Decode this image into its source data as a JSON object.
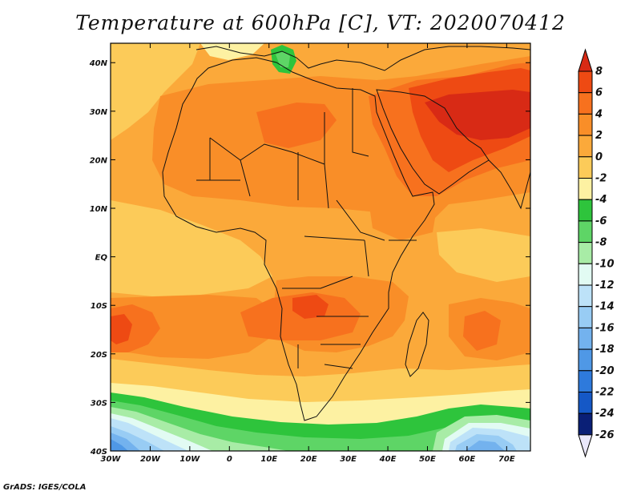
{
  "title": "Temperature at 600hPa [C], VT: 2020070412",
  "footer": "GrADS: IGES/COLA",
  "map": {
    "lon_range": [
      -30,
      76
    ],
    "lat_range": [
      -40,
      44
    ],
    "lat_ticks": [
      {
        "lat": 40,
        "label": "40N"
      },
      {
        "lat": 30,
        "label": "30N"
      },
      {
        "lat": 20,
        "label": "20N"
      },
      {
        "lat": 10,
        "label": "10N"
      },
      {
        "lat": 0,
        "label": "EQ"
      },
      {
        "lat": -10,
        "label": "10S"
      },
      {
        "lat": -20,
        "label": "20S"
      },
      {
        "lat": -30,
        "label": "30S"
      },
      {
        "lat": -40,
        "label": "40S"
      }
    ],
    "lon_ticks": [
      {
        "lon": -30,
        "label": "30W"
      },
      {
        "lon": -20,
        "label": "20W"
      },
      {
        "lon": -10,
        "label": "10W"
      },
      {
        "lon": 0,
        "label": "0"
      },
      {
        "lon": 10,
        "label": "10E"
      },
      {
        "lon": 20,
        "label": "20E"
      },
      {
        "lon": 30,
        "label": "30E"
      },
      {
        "lon": 40,
        "label": "40E"
      },
      {
        "lon": 50,
        "label": "50E"
      },
      {
        "lon": 60,
        "label": "60E"
      },
      {
        "lon": 70,
        "label": "70E"
      }
    ]
  },
  "colorbar": {
    "labels": [
      "8",
      "6",
      "4",
      "2",
      "0",
      "-2",
      "-4",
      "-6",
      "-8",
      "-10",
      "-12",
      "-14",
      "-16",
      "-18",
      "-20",
      "-22",
      "-24",
      "-26"
    ],
    "bins": [
      {
        "range": ">8",
        "color": "#d82a15"
      },
      {
        "range": "6 to 8",
        "color": "#ee4a13"
      },
      {
        "range": "4 to 6",
        "color": "#f7711e"
      },
      {
        "range": "2 to 4",
        "color": "#f98e28"
      },
      {
        "range": "0 to 2",
        "color": "#fba93a"
      },
      {
        "range": "-2 to 0",
        "color": "#fccb59"
      },
      {
        "range": "-4 to -2",
        "color": "#fdf1a2"
      },
      {
        "range": "-6 to -4",
        "color": "#2ec43c"
      },
      {
        "range": "-8 to -6",
        "color": "#5ed566"
      },
      {
        "range": "-10 to -8",
        "color": "#a8eca6"
      },
      {
        "range": "-12 to -10",
        "color": "#e2fbf3"
      },
      {
        "range": "-14 to -12",
        "color": "#bde2f8"
      },
      {
        "range": "-16 to -14",
        "color": "#98ccf4"
      },
      {
        "range": "-18 to -16",
        "color": "#73b2ee"
      },
      {
        "range": "-20 to -18",
        "color": "#4f98e6"
      },
      {
        "range": "-22 to -20",
        "color": "#2e7adc"
      },
      {
        "range": "-24 to -22",
        "color": "#1558c6"
      },
      {
        "range": "-26 to -24",
        "color": "#0a1f76"
      },
      {
        "range": "<-26",
        "color": "#eae8fb"
      }
    ]
  }
}
